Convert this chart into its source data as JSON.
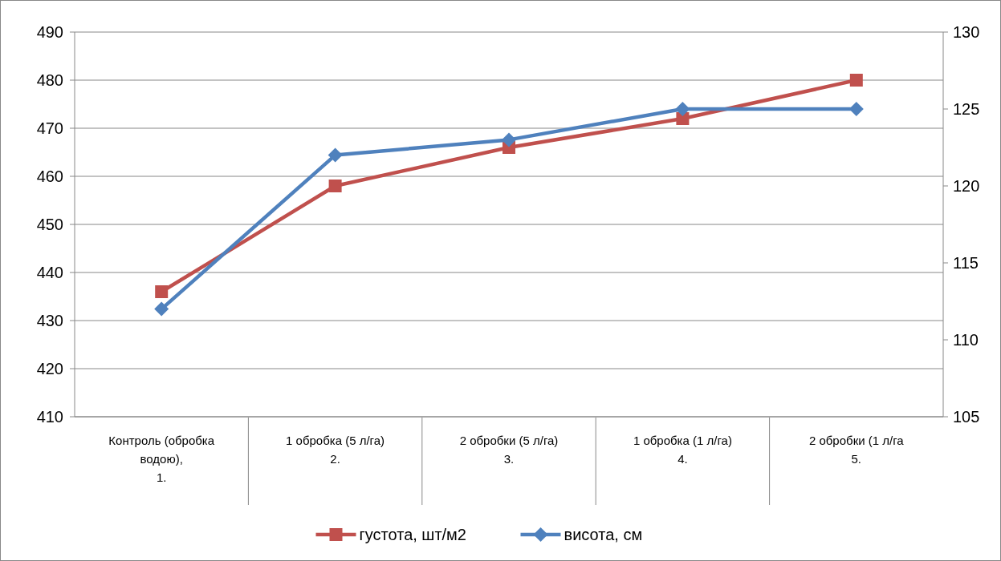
{
  "chart_data": {
    "type": "line",
    "categories": [
      "Контроль (обробка водою),\n1.",
      "1 обробка (5 л/га)\n2.",
      "2 обробки (5 л/га)\n3.",
      "1 обробка (1 л/га)\n4.",
      "2 обробки (1 л/га\n5."
    ],
    "series": [
      {
        "name": "густота, шт/м2",
        "color": "#c0504d",
        "marker": "square",
        "values": [
          436,
          458,
          466,
          472,
          480
        ]
      },
      {
        "name": "висота, см",
        "color": "#4f81bd",
        "marker": "diamond",
        "axis": "y2",
        "values": [
          112,
          122,
          123,
          125,
          125
        ]
      }
    ],
    "ylim": [
      410,
      490
    ],
    "yticks": [
      410,
      420,
      430,
      440,
      450,
      460,
      470,
      480,
      490
    ],
    "y2lim": [
      105,
      130
    ],
    "y2ticks": [
      105,
      110,
      115,
      120,
      125,
      130
    ],
    "grid": "y",
    "legend": "bottom",
    "line_style": "solid"
  }
}
